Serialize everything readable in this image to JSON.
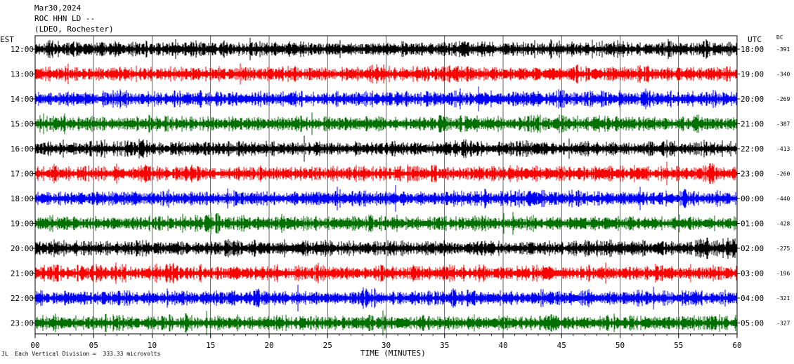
{
  "header": {
    "date": "Mar30,2024",
    "station": "ROC HHN LD --",
    "network": "(LDEO, Rochester)"
  },
  "corner": {
    "left": "EST",
    "right": "UTC",
    "dc": "DC"
  },
  "footer": {
    "scale_note": "Each Vertical Division =  333.33 microvolts",
    "mark": "JL"
  },
  "chart_data": {
    "type": "line",
    "xlabel": "TIME (MINUTES)",
    "xlim": [
      0,
      60
    ],
    "x_ticks": [
      "00",
      "05",
      "10",
      "15",
      "20",
      "25",
      "30",
      "35",
      "40",
      "45",
      "50",
      "55",
      "60"
    ],
    "trace_colors": [
      "#000000",
      "#ff0000",
      "#0000ff",
      "#007000"
    ],
    "series": [
      {
        "est": "12:00",
        "utc": "18:00",
        "dc": "-391"
      },
      {
        "est": "13:00",
        "utc": "19:00",
        "dc": "-340"
      },
      {
        "est": "14:00",
        "utc": "20:00",
        "dc": "-269"
      },
      {
        "est": "15:00",
        "utc": "21:00",
        "dc": "-387"
      },
      {
        "est": "16:00",
        "utc": "22:00",
        "dc": "-413"
      },
      {
        "est": "17:00",
        "utc": "23:00",
        "dc": "-260"
      },
      {
        "est": "18:00",
        "utc": "00:00",
        "dc": "-440"
      },
      {
        "est": "19:00",
        "utc": "01:00",
        "dc": "-428"
      },
      {
        "est": "20:00",
        "utc": "02:00",
        "dc": "-275"
      },
      {
        "est": "21:00",
        "utc": "03:00",
        "dc": "-196"
      },
      {
        "est": "22:00",
        "utc": "04:00",
        "dc": "-321"
      },
      {
        "est": "23:00",
        "utc": "05:00",
        "dc": "-327"
      }
    ]
  }
}
